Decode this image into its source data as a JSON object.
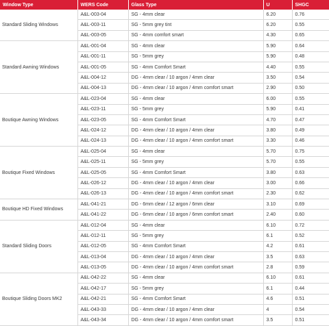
{
  "header": {
    "window_type": "Window Type",
    "wers_code": "WERS Code",
    "glass_type": "Glass Type",
    "u": "U",
    "shgc": "SHGC"
  },
  "groups": [
    {
      "name": "Standard Sliding Windows",
      "rows": [
        [
          "A&L-003-04",
          "SG - 4mm clear",
          "6.20",
          "0.76"
        ],
        [
          "A&L-003-11",
          "SG - 5mm grey tint",
          "6.20",
          "0.55"
        ],
        [
          "A&L-003-05",
          "SG - 4mm comfort smart",
          "4.30",
          "0.65"
        ]
      ]
    },
    {
      "name": "Standard Awning Windows",
      "rows": [
        [
          "A&L-001-04",
          "SG - 4mm clear",
          "5.90",
          "0.64"
        ],
        [
          "A&L-001-11",
          "SG - 5mm grey",
          "5.90",
          "0.48"
        ],
        [
          "A&L-001-05",
          "SG - 4mm Comfort Smart",
          "4.40",
          "0.55"
        ],
        [
          "A&L-004-12",
          "DG - 4mm clear / 10 argon / 4mm clear",
          "3.50",
          "0.54"
        ],
        [
          "A&L-004-13",
          "DG - 4mm clear / 10 argon / 4mm comfort smart",
          "2.90",
          "0.50"
        ]
      ]
    },
    {
      "name": "Boutique Awning Windows",
      "rows": [
        [
          "A&L-023-04",
          "SG - 4mm clear",
          "6.00",
          "0.55"
        ],
        [
          "A&L-023-11",
          "SG - 5mm grey",
          "5.90",
          "0.41"
        ],
        [
          "A&L-023-05",
          "SG - 4mm Comfort Smart",
          "4.70",
          "0.47"
        ],
        [
          "A&L-024-12",
          "DG - 4mm clear / 10 argon / 4mm clear",
          "3.80",
          "0.49"
        ],
        [
          "A&L-024-13",
          "DG - 4mm clear / 10 argon / 4mm comfort smart",
          "3.30",
          "0.46"
        ]
      ]
    },
    {
      "name": "Boutique Fixed Windows",
      "rows": [
        [
          "A&L-025-04",
          "SG - 4mm clear",
          "5.70",
          "0.75"
        ],
        [
          "A&L-025-11",
          "SG - 5mm grey",
          "5.70",
          "0.55"
        ],
        [
          "A&L-025-05",
          "SG - 4mm Comfort Smart",
          "3.80",
          "0.63"
        ],
        [
          "A&L-026-12",
          "DG - 4mm clear / 10 argon / 4mm clear",
          "3.00",
          "0.66"
        ],
        [
          "A&L-026-13",
          "DG - 4mm clear / 10 argon / 4mm comfort smart",
          "2.30",
          "0.62"
        ]
      ]
    },
    {
      "name": "Boutique HD Fixed Windows",
      "rows": [
        [
          "A&L-041-21",
          "DG - 6mm clear / 12 argon / 6mm clear",
          "3.10",
          "0.69"
        ],
        [
          "A&L-041-22",
          "DG - 6mm clear / 10 argon / 6mm comfort smart",
          "2.40",
          "0.60"
        ]
      ]
    },
    {
      "name": "Standard Sliding Doors",
      "rows": [
        [
          "A&L-012-04",
          "SG - 4mm clear",
          "6.10",
          "0.72"
        ],
        [
          "A&L-012-11",
          "SG - 5mm grey",
          "6.1",
          "0.52"
        ],
        [
          "A&L-012-05",
          "SG - 4mm Comfort Smart",
          "4.2",
          "0.61"
        ],
        [
          "A&L-013-04",
          "DG - 4mm clear / 10 argon / 4mm clear",
          "3.5",
          "0.63"
        ],
        [
          "A&L-013-05",
          "DG - 4mm clear / 10 argon / 4mm comfort smart",
          "2.8",
          "0.59"
        ]
      ]
    },
    {
      "name": "Boutique Sliding Doors MK2",
      "rows": [
        [
          "A&L-042-22",
          "SG - 4mm clear",
          "6.10",
          "0.61"
        ],
        [
          "A&L-042-17",
          "SG - 5mm grey",
          "6.1",
          "0.44"
        ],
        [
          "A&L-042-21",
          "SG - 4mm Comfort Smart",
          "4.6",
          "0.51"
        ],
        [
          "A&L-043-33",
          "DG - 4mm clear / 10 argon / 4mm clear",
          "4",
          "0.54"
        ],
        [
          "A&L-043-34",
          "DG - 4mm clear / 10 argon / 4mm comfort smart",
          "3.5",
          "0.51"
        ]
      ]
    }
  ]
}
